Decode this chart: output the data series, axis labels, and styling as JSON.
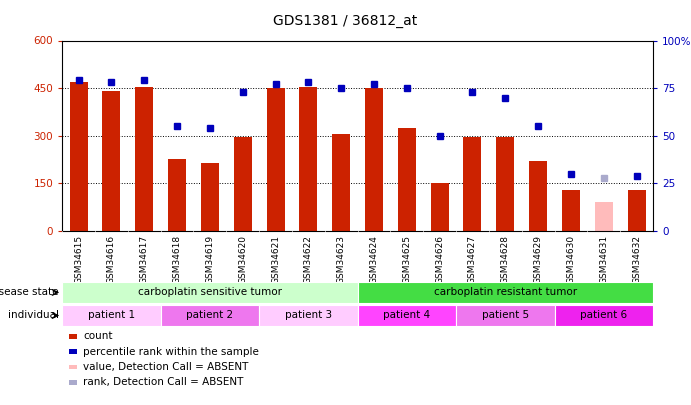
{
  "title": "GDS1381 / 36812_at",
  "samples": [
    "GSM34615",
    "GSM34616",
    "GSM34617",
    "GSM34618",
    "GSM34619",
    "GSM34620",
    "GSM34621",
    "GSM34622",
    "GSM34623",
    "GSM34624",
    "GSM34625",
    "GSM34626",
    "GSM34627",
    "GSM34628",
    "GSM34629",
    "GSM34630",
    "GSM34631",
    "GSM34632"
  ],
  "counts": [
    470,
    440,
    455,
    225,
    215,
    295,
    450,
    455,
    305,
    450,
    325,
    152,
    295,
    295,
    220,
    130,
    null,
    130
  ],
  "absent_count": [
    null,
    null,
    null,
    null,
    null,
    null,
    null,
    null,
    null,
    null,
    null,
    null,
    null,
    null,
    null,
    null,
    90,
    null
  ],
  "percentile_ranks": [
    79,
    78,
    79,
    55,
    54,
    73,
    77,
    78,
    75,
    77,
    75,
    50,
    73,
    70,
    55,
    30,
    null,
    29
  ],
  "absent_rank": [
    null,
    null,
    null,
    null,
    null,
    null,
    null,
    null,
    null,
    null,
    null,
    null,
    null,
    null,
    null,
    null,
    28,
    null
  ],
  "bar_color": "#cc2200",
  "absent_bar_color": "#ffbbbb",
  "dot_color": "#0000bb",
  "absent_dot_color": "#aaaacc",
  "ylim_left": [
    0,
    600
  ],
  "ylim_right": [
    0,
    100
  ],
  "yticks_left": [
    0,
    150,
    300,
    450,
    600
  ],
  "yticks_right": [
    0,
    25,
    50,
    75,
    100
  ],
  "yticklabels_left": [
    "0",
    "150",
    "300",
    "450",
    "600"
  ],
  "yticklabels_right": [
    "0",
    "25",
    "50",
    "75",
    "100%"
  ],
  "disease_state_groups": [
    {
      "label": "carboplatin sensitive tumor",
      "start": 0,
      "end": 9,
      "color": "#ccffcc"
    },
    {
      "label": "carboplatin resistant tumor",
      "start": 9,
      "end": 18,
      "color": "#44dd44"
    }
  ],
  "individual_groups": [
    {
      "label": "patient 1",
      "start": 0,
      "end": 3,
      "color": "#ffccff"
    },
    {
      "label": "patient 2",
      "start": 3,
      "end": 6,
      "color": "#ee77ee"
    },
    {
      "label": "patient 3",
      "start": 6,
      "end": 9,
      "color": "#ffccff"
    },
    {
      "label": "patient 4",
      "start": 9,
      "end": 12,
      "color": "#ff44ff"
    },
    {
      "label": "patient 5",
      "start": 12,
      "end": 15,
      "color": "#ee77ee"
    },
    {
      "label": "patient 6",
      "start": 15,
      "end": 18,
      "color": "#ee22ee"
    }
  ],
  "left_axis_color": "#cc2200",
  "right_axis_color": "#0000bb",
  "background_color": "#ffffff",
  "xtick_area_color": "#cccccc"
}
